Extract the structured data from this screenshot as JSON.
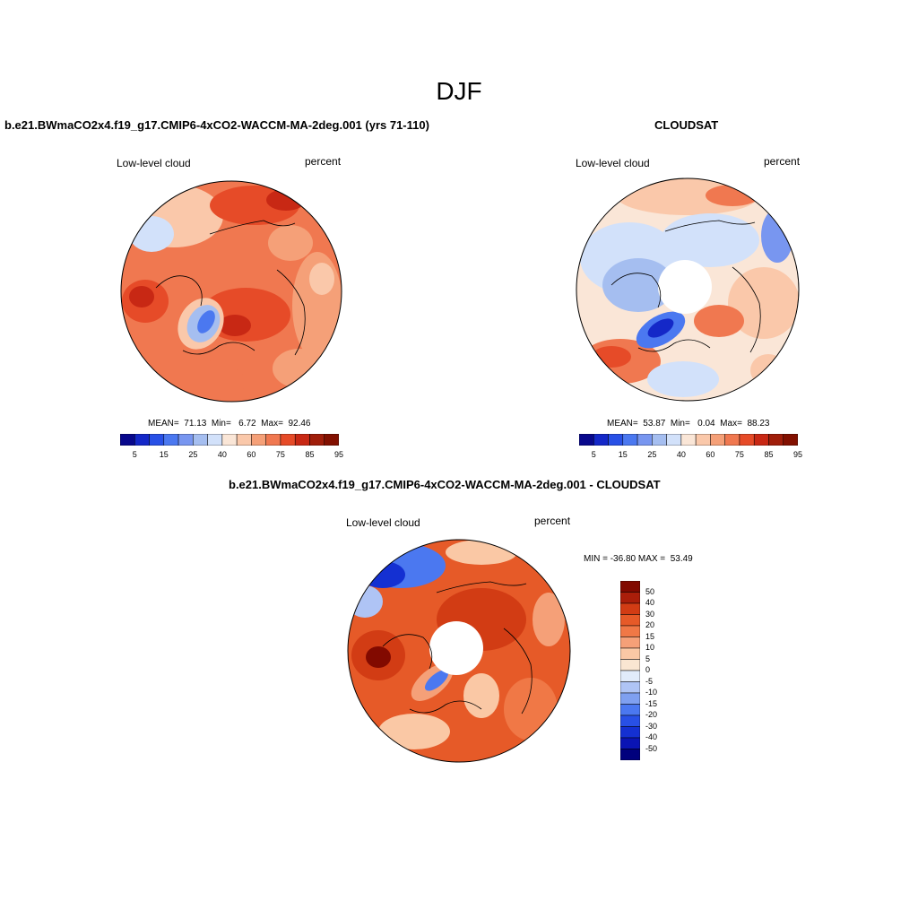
{
  "season": "DJF",
  "panels": [
    {
      "title": "b.e21.BWmaCO2x4.f19_g17.CMIP6-4xCO2-WACCM-MA-2deg.001 (yrs 71-110)",
      "left_label": "Low-level cloud",
      "right_label": "percent",
      "stats": "MEAN=  71.13  Min=   6.72  Max=  92.46",
      "legend_ticks": [
        "5",
        "15",
        "25",
        "40",
        "60",
        "75",
        "85",
        "95"
      ]
    },
    {
      "title": "CLOUDSAT",
      "left_label": "Low-level cloud",
      "right_label": "percent",
      "stats": "MEAN=  53.87  Min=   0.04  Max=  88.23",
      "legend_ticks": [
        "5",
        "15",
        "25",
        "40",
        "60",
        "75",
        "85",
        "95"
      ]
    },
    {
      "title": "b.e21.BWmaCO2x4.f19_g17.CMIP6-4xCO2-WACCM-MA-2deg.001 - CLOUDSAT",
      "left_label": "Low-level cloud",
      "right_label": "percent",
      "stats": "MIN = -36.80 MAX =  53.49",
      "legend_ticks": [
        "50",
        "40",
        "30",
        "20",
        "15",
        "10",
        "5",
        "0",
        "-5",
        "-10",
        "-15",
        "-20",
        "-30",
        "-40",
        "-50"
      ]
    }
  ],
  "colors": {
    "abs_scale": [
      "#08088c",
      "#1428c8",
      "#2850e6",
      "#4b78f0",
      "#7896f0",
      "#a5bef0",
      "#d2e1fa",
      "#fae6d7",
      "#fac8aa",
      "#f5a078",
      "#f07850",
      "#e64b28",
      "#c82814",
      "#a01e0a",
      "#821000"
    ],
    "diff_scale": [
      "#00007d",
      "#0a14b4",
      "#1430d2",
      "#2850e6",
      "#4b78f0",
      "#7fa0f0",
      "#afc4f5",
      "#e1ebfa",
      "#fae6d2",
      "#fac8a5",
      "#f5a078",
      "#f07846",
      "#e65a28",
      "#d23c14",
      "#aa1e0a",
      "#820a00"
    ],
    "polar_hole": "#ffffff"
  }
}
